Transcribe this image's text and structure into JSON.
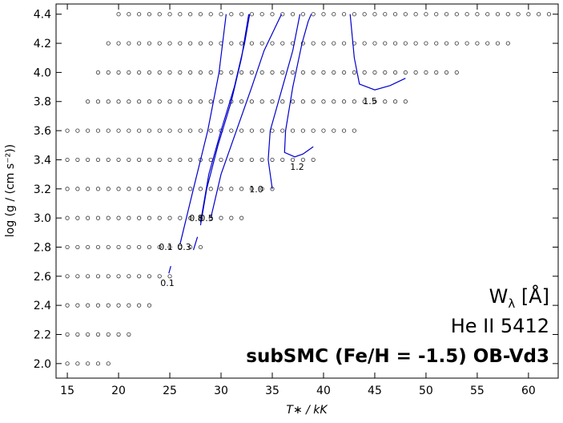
{
  "chart_data": {
    "type": "scatter",
    "xlabel": "T∗ / kK",
    "ylabel": "log (g / (cm s⁻²))",
    "annotations": [
      {
        "text": "W",
        "sub": "λ",
        "rest": " [Å]"
      },
      {
        "text": "He II 5412"
      },
      {
        "text": "subSMC (Fe/H = -1.5) OB-Vd3"
      }
    ],
    "xlim": [
      13.9,
      62.9
    ],
    "ylim": [
      1.9,
      4.47
    ],
    "xticks": [
      15,
      20,
      25,
      30,
      35,
      40,
      45,
      50,
      55,
      60
    ],
    "yticks": [
      {
        "value": 2.0,
        "label": "2.0"
      },
      {
        "value": 2.2,
        "label": "2.2"
      },
      {
        "value": 2.4,
        "label": "2.4"
      },
      {
        "value": 2.6,
        "label": "2.6"
      },
      {
        "value": 2.8,
        "label": "2.8"
      },
      {
        "value": 3.0,
        "label": "3.0"
      },
      {
        "value": 3.2,
        "label": "3.2"
      },
      {
        "value": 3.4,
        "label": "3.4"
      },
      {
        "value": 3.6,
        "label": "3.6"
      },
      {
        "value": 3.8,
        "label": "3.8"
      },
      {
        "value": 4.0,
        "label": "4.0"
      },
      {
        "value": 4.2,
        "label": "4.2"
      },
      {
        "value": 4.4,
        "label": "4.4"
      }
    ],
    "marker_color": "#333333",
    "models": [
      {
        "log_g": 4.4,
        "teff": [
          20,
          21,
          22,
          23,
          24,
          25,
          26,
          27,
          28,
          29,
          30,
          31,
          32,
          33,
          34,
          35,
          36,
          37,
          38,
          39,
          40,
          41,
          42,
          43,
          44,
          45,
          46,
          47,
          48,
          49,
          50,
          51,
          52,
          53,
          54,
          55,
          56,
          57,
          58,
          59,
          60,
          61,
          62
        ]
      },
      {
        "log_g": 4.2,
        "teff": [
          19,
          20,
          21,
          22,
          23,
          24,
          25,
          26,
          27,
          28,
          29,
          30,
          31,
          32,
          33,
          34,
          35,
          36,
          37,
          38,
          39,
          40,
          41,
          42,
          43,
          44,
          45,
          46,
          47,
          48,
          49,
          50,
          51,
          52,
          53,
          54,
          55,
          56,
          57,
          58
        ]
      },
      {
        "log_g": 4.0,
        "teff": [
          18,
          19,
          20,
          21,
          22,
          23,
          24,
          25,
          26,
          27,
          28,
          29,
          30,
          31,
          32,
          33,
          34,
          35,
          36,
          37,
          38,
          39,
          40,
          41,
          42,
          43,
          44,
          45,
          46,
          47,
          48,
          49,
          50,
          51,
          52,
          53
        ]
      },
      {
        "log_g": 3.8,
        "teff": [
          17,
          18,
          19,
          20,
          21,
          22,
          23,
          24,
          25,
          26,
          27,
          28,
          29,
          30,
          31,
          32,
          33,
          34,
          35,
          36,
          37,
          38,
          39,
          40,
          41,
          42,
          43,
          44,
          45,
          46,
          47,
          48
        ]
      },
      {
        "log_g": 3.6,
        "teff": [
          15,
          16,
          17,
          18,
          19,
          20,
          21,
          22,
          23,
          24,
          25,
          26,
          27,
          28,
          29,
          30,
          31,
          32,
          33,
          34,
          35,
          36,
          37,
          38,
          39,
          40,
          41,
          42,
          43
        ]
      },
      {
        "log_g": 3.4,
        "teff": [
          15,
          16,
          17,
          18,
          19,
          20,
          21,
          22,
          23,
          24,
          25,
          26,
          27,
          28,
          29,
          30,
          31,
          32,
          33,
          34,
          35,
          36,
          37,
          38,
          39
        ]
      },
      {
        "log_g": 3.2,
        "teff": [
          15,
          16,
          17,
          18,
          19,
          20,
          21,
          22,
          23,
          24,
          25,
          26,
          27,
          28,
          29,
          30,
          31,
          32,
          33,
          34,
          35
        ]
      },
      {
        "log_g": 3.0,
        "teff": [
          15,
          16,
          17,
          18,
          19,
          20,
          21,
          22,
          23,
          24,
          25,
          26,
          27,
          28,
          29,
          30,
          31,
          32
        ]
      },
      {
        "log_g": 2.8,
        "teff": [
          15,
          16,
          17,
          18,
          19,
          20,
          21,
          22,
          23,
          24,
          25,
          26,
          27,
          28
        ]
      },
      {
        "log_g": 2.6,
        "teff": [
          15,
          16,
          17,
          18,
          19,
          20,
          21,
          22,
          23,
          24,
          25
        ]
      },
      {
        "log_g": 2.4,
        "teff": [
          15,
          16,
          17,
          18,
          19,
          20,
          21,
          22,
          23
        ]
      },
      {
        "log_g": 2.2,
        "teff": [
          15,
          16,
          17,
          18,
          19,
          20,
          21
        ]
      },
      {
        "log_g": 2.0,
        "teff": [
          15,
          16,
          17,
          18,
          19
        ]
      }
    ],
    "contour_color": "#0000cc",
    "contours": [
      {
        "label": "0.1",
        "x": [
          24.9,
          25.1,
          null,
          26.0,
          27.3,
          28.7,
          29.8,
          30.5
        ],
        "y": [
          2.62,
          2.67,
          null,
          2.82,
          3.2,
          3.6,
          4.0,
          4.4
        ]
      },
      {
        "label": "0.3",
        "x": [
          27.3,
          27.7,
          null,
          28.0,
          28.6,
          29.7,
          31.0,
          32.0,
          32.7
        ],
        "y": [
          2.78,
          2.87,
          null,
          2.95,
          3.2,
          3.5,
          3.8,
          4.1,
          4.4
        ]
      },
      {
        "label": "0.5",
        "x": [
          29.0,
          30.0,
          31.5,
          33.0,
          34.2,
          35.9
        ],
        "y": [
          3.0,
          3.3,
          3.6,
          3.9,
          4.15,
          4.4
        ]
      },
      {
        "label": "0.8",
        "x": [
          28.0,
          28.8,
          30.0,
          31.3,
          32.3,
          32.8
        ],
        "y": [
          2.97,
          3.3,
          3.6,
          3.9,
          4.2,
          4.4
        ]
      },
      {
        "label": "1.0",
        "x": [
          35.0,
          34.6,
          34.8,
          36.0,
          37.0,
          37.7
        ],
        "y": [
          3.2,
          3.4,
          3.6,
          3.9,
          4.15,
          4.4
        ]
      },
      {
        "label": "1.2",
        "x": [
          39.0,
          38.0,
          37.2,
          36.2,
          36.3,
          37.0,
          37.9,
          38.5,
          38.8
        ],
        "y": [
          3.49,
          3.44,
          3.42,
          3.45,
          3.6,
          3.9,
          4.2,
          4.35,
          4.4
        ]
      },
      {
        "label": "1.5",
        "x": [
          42.6,
          43.0,
          43.5,
          45.0,
          46.5,
          48.0
        ],
        "y": [
          4.4,
          4.1,
          3.92,
          3.88,
          3.91,
          3.96
        ]
      }
    ]
  }
}
